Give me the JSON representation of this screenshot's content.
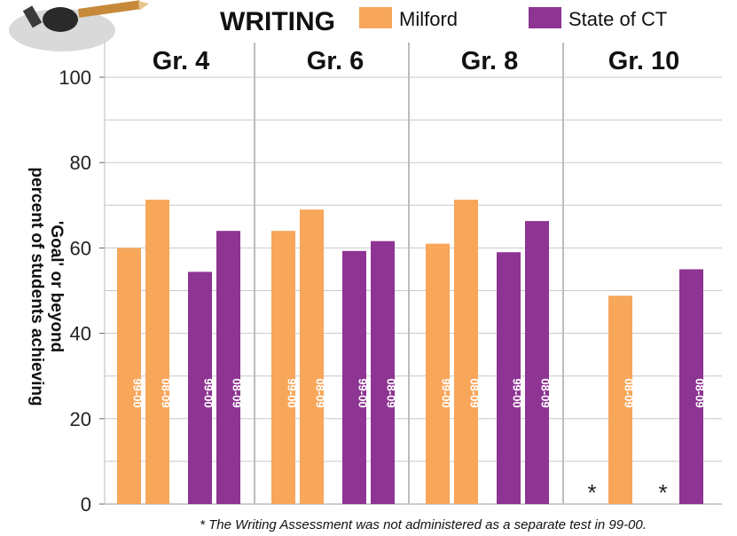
{
  "chart_data": {
    "type": "bar",
    "title": "WRITING",
    "ylabel_lines": [
      "percent of students achieving",
      "'Goal' or beyond"
    ],
    "ylim": [
      0,
      100
    ],
    "yticks": [
      0,
      20,
      40,
      60,
      80,
      100
    ],
    "grid": true,
    "legend": {
      "placement": "top",
      "entries": [
        {
          "name": "Milford",
          "color": "#F7A65A"
        },
        {
          "name": "State of CT",
          "color": "#8E3493"
        }
      ]
    },
    "groups": [
      {
        "label": "Gr. 4",
        "bars": [
          {
            "series": "Milford",
            "year": "99-00",
            "value": 60
          },
          {
            "series": "Milford",
            "year": "08-09",
            "value": 71.3
          },
          {
            "series": "State of CT",
            "year": "99-00",
            "value": 54.4
          },
          {
            "series": "State of CT",
            "year": "08-09",
            "value": 64
          }
        ]
      },
      {
        "label": "Gr. 6",
        "bars": [
          {
            "series": "Milford",
            "year": "99-00",
            "value": 64
          },
          {
            "series": "Milford",
            "year": "08-09",
            "value": 69
          },
          {
            "series": "State of CT",
            "year": "99-00",
            "value": 59.3
          },
          {
            "series": "State of CT",
            "year": "08-09",
            "value": 61.6
          }
        ]
      },
      {
        "label": "Gr. 8",
        "bars": [
          {
            "series": "Milford",
            "year": "99-00",
            "value": 61
          },
          {
            "series": "Milford",
            "year": "08-09",
            "value": 71.3
          },
          {
            "series": "State of CT",
            "year": "99-00",
            "value": 59
          },
          {
            "series": "State of CT",
            "year": "08-09",
            "value": 66.3
          }
        ]
      },
      {
        "label": "Gr. 10",
        "bars": [
          {
            "series": "Milford",
            "year": "99-00",
            "value": null,
            "marker": "*"
          },
          {
            "series": "Milford",
            "year": "08-09",
            "value": 48.8
          },
          {
            "series": "State of CT",
            "year": "99-00",
            "value": null,
            "marker": "*"
          },
          {
            "series": "State of CT",
            "year": "08-09",
            "value": 55
          }
        ]
      }
    ],
    "footnote": "* The Writing Assessment was not administered as a separate test in 99-00."
  },
  "colors": {
    "milford": "#F7A65A",
    "state": "#8E3493",
    "grid": "#c8c8c8",
    "divider": "#bdbdbd"
  },
  "logo_icon": "pencil-sharpener-mascot-icon"
}
